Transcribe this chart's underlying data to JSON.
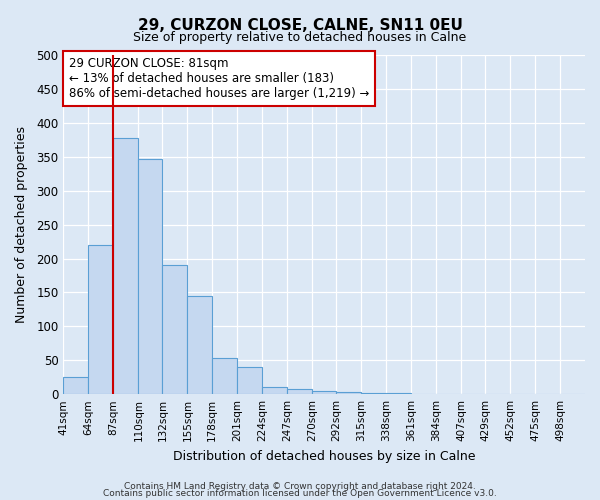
{
  "title": "29, CURZON CLOSE, CALNE, SN11 0EU",
  "subtitle": "Size of property relative to detached houses in Calne",
  "xlabel": "Distribution of detached houses by size in Calne",
  "ylabel": "Number of detached properties",
  "bin_labels": [
    "41sqm",
    "64sqm",
    "87sqm",
    "110sqm",
    "132sqm",
    "155sqm",
    "178sqm",
    "201sqm",
    "224sqm",
    "247sqm",
    "270sqm",
    "292sqm",
    "315sqm",
    "338sqm",
    "361sqm",
    "384sqm",
    "407sqm",
    "429sqm",
    "452sqm",
    "475sqm",
    "498sqm"
  ],
  "bar_heights": [
    25,
    220,
    378,
    347,
    190,
    144,
    53,
    40,
    11,
    8,
    5,
    3,
    2,
    2,
    1,
    1,
    0,
    0,
    0,
    0,
    0
  ],
  "bar_color": "#c5d8f0",
  "bar_edge_color": "#5a9fd4",
  "vline_x_index": 2,
  "vline_color": "#cc0000",
  "ylim": [
    0,
    500
  ],
  "yticks": [
    0,
    50,
    100,
    150,
    200,
    250,
    300,
    350,
    400,
    450,
    500
  ],
  "annotation_line1": "29 CURZON CLOSE: 81sqm",
  "annotation_line2": "← 13% of detached houses are smaller (183)",
  "annotation_line3": "86% of semi-detached houses are larger (1,219) →",
  "annotation_box_color": "#ffffff",
  "annotation_box_edge": "#cc0000",
  "footer1": "Contains HM Land Registry data © Crown copyright and database right 2024.",
  "footer2": "Contains public sector information licensed under the Open Government Licence v3.0.",
  "background_color": "#dce8f5",
  "plot_bg_color": "#dce8f5",
  "grid_color": "#ffffff",
  "bin_edges": [
    41,
    64,
    87,
    110,
    132,
    155,
    178,
    201,
    224,
    247,
    270,
    292,
    315,
    338,
    361,
    384,
    407,
    429,
    452,
    475,
    498,
    521
  ]
}
